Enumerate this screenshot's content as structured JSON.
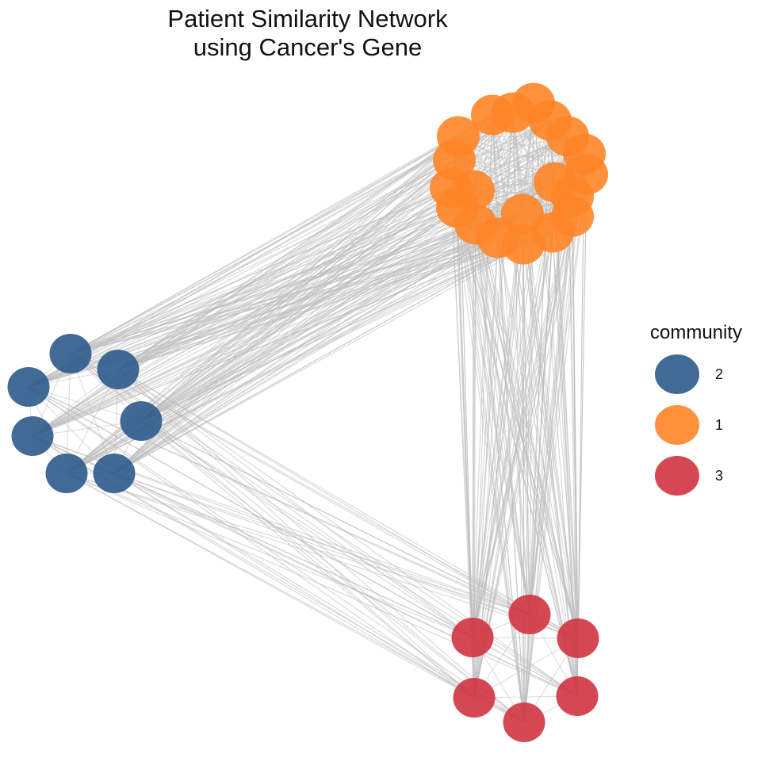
{
  "title": {
    "line1": "Patient Similarity Network",
    "line2": "using Cancer's Gene"
  },
  "legend": {
    "title": "community",
    "items": [
      {
        "label": "2",
        "color": "#2E5A8C",
        "group": "community-2"
      },
      {
        "label": "1",
        "color": "#FF8427",
        "group": "community-1"
      },
      {
        "label": "3",
        "color": "#D03340",
        "group": "community-3"
      }
    ]
  },
  "colors": {
    "edge": "#bdbdbd",
    "community_1": "#FF8427",
    "community_2": "#2E5A8C",
    "community_3": "#D03340"
  },
  "chart_data": {
    "type": "network",
    "communities": [
      {
        "id": "2",
        "node_count": 7
      },
      {
        "id": "1",
        "node_count": 20
      },
      {
        "id": "3",
        "node_count": 6
      }
    ],
    "edge_style": "light-gray",
    "legend_position": "right"
  }
}
